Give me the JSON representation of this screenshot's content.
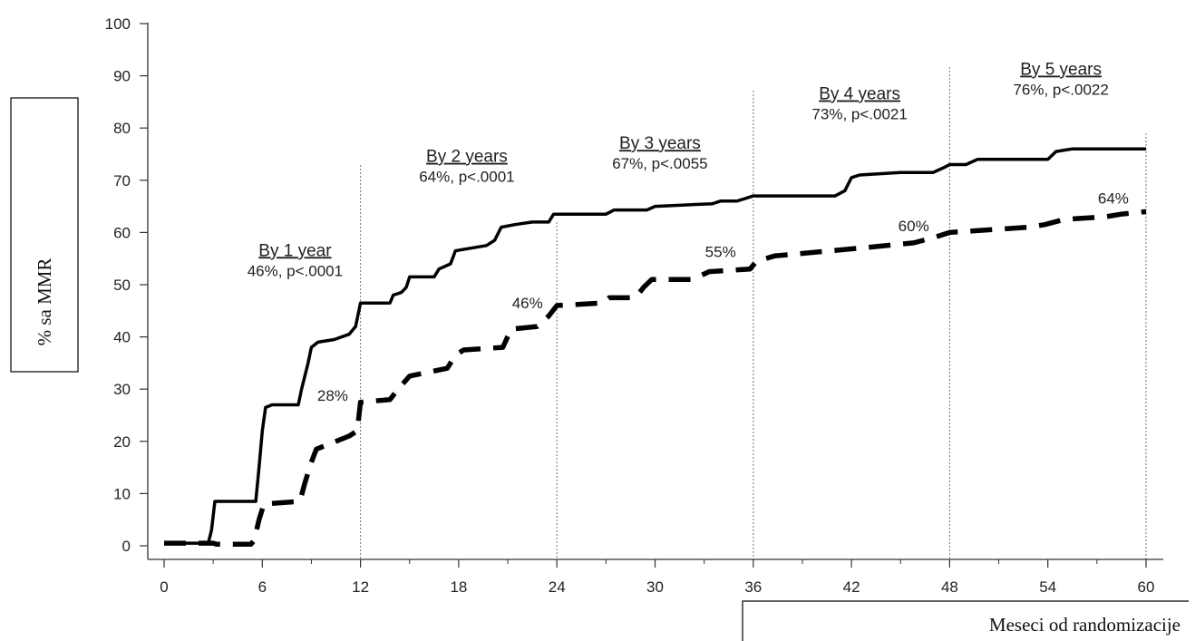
{
  "chart_data": {
    "type": "line",
    "xlabel": "Meseci od randomizacije",
    "ylabel": "% sa MMR",
    "xlim": [
      0,
      60
    ],
    "ylim": [
      0,
      100
    ],
    "x_ticks": [
      0,
      6,
      12,
      18,
      24,
      30,
      36,
      42,
      48,
      54,
      60
    ],
    "y_ticks": [
      0,
      10,
      20,
      30,
      40,
      50,
      60,
      70,
      80,
      90,
      100
    ],
    "milestones": [
      12,
      24,
      36,
      48,
      60
    ],
    "legend": "none",
    "grid": false,
    "series": [
      {
        "style": "solid",
        "color": "#000000",
        "points": [
          [
            0,
            0.5
          ],
          [
            2.7,
            0.5
          ],
          [
            2.9,
            3
          ],
          [
            3.1,
            8.5
          ],
          [
            5.6,
            8.5
          ],
          [
            5.8,
            15
          ],
          [
            6.0,
            22
          ],
          [
            6.2,
            26.5
          ],
          [
            6.6,
            27
          ],
          [
            8.2,
            27
          ],
          [
            8.4,
            30
          ],
          [
            8.8,
            35
          ],
          [
            9.0,
            38
          ],
          [
            9.4,
            39
          ],
          [
            10.4,
            39.5
          ],
          [
            11.3,
            40.5
          ],
          [
            11.7,
            42
          ],
          [
            12.0,
            46.5
          ],
          [
            13.8,
            46.5
          ],
          [
            14.0,
            48
          ],
          [
            14.5,
            48.5
          ],
          [
            14.8,
            49.5
          ],
          [
            15.0,
            51.5
          ],
          [
            16.5,
            51.5
          ],
          [
            16.8,
            53
          ],
          [
            17.5,
            54
          ],
          [
            17.8,
            56.5
          ],
          [
            19.7,
            57.5
          ],
          [
            20.2,
            58.5
          ],
          [
            20.6,
            61
          ],
          [
            21.4,
            61.5
          ],
          [
            22.5,
            62
          ],
          [
            23.5,
            62
          ],
          [
            23.8,
            63.5
          ],
          [
            27,
            63.5
          ],
          [
            27.5,
            64.3
          ],
          [
            29.5,
            64.3
          ],
          [
            30,
            65
          ],
          [
            33.5,
            65.5
          ],
          [
            34,
            66
          ],
          [
            35,
            66
          ],
          [
            35.5,
            66.5
          ],
          [
            36,
            67
          ],
          [
            41,
            67
          ],
          [
            41.6,
            68
          ],
          [
            42,
            70.5
          ],
          [
            42.5,
            71
          ],
          [
            45,
            71.5
          ],
          [
            47,
            71.5
          ],
          [
            47.7,
            72.5
          ],
          [
            48,
            73
          ],
          [
            49,
            73
          ],
          [
            49.7,
            74
          ],
          [
            54,
            74
          ],
          [
            54.5,
            75.5
          ],
          [
            55.5,
            76
          ],
          [
            60,
            76
          ]
        ]
      },
      {
        "style": "dashed",
        "color": "#000000",
        "points": [
          [
            0,
            0.5
          ],
          [
            3.0,
            0.5
          ],
          [
            3.2,
            0.3
          ],
          [
            5.3,
            0.3
          ],
          [
            5.5,
            1
          ],
          [
            5.8,
            5
          ],
          [
            6.1,
            8
          ],
          [
            8.3,
            8.5
          ],
          [
            8.6,
            12
          ],
          [
            9.0,
            16
          ],
          [
            9.3,
            18.5
          ],
          [
            11.3,
            21
          ],
          [
            11.8,
            22
          ],
          [
            12.0,
            27.5
          ],
          [
            13.8,
            28
          ],
          [
            14.3,
            30
          ],
          [
            15.0,
            32.5
          ],
          [
            17.3,
            34
          ],
          [
            17.8,
            36.5
          ],
          [
            18.3,
            37.5
          ],
          [
            20.7,
            38
          ],
          [
            21.2,
            41.5
          ],
          [
            22.8,
            42
          ],
          [
            23.5,
            44
          ],
          [
            24.0,
            46
          ],
          [
            26.8,
            46.5
          ],
          [
            27.2,
            47.5
          ],
          [
            28.8,
            47.5
          ],
          [
            29.3,
            49.5
          ],
          [
            29.8,
            51
          ],
          [
            32.3,
            51
          ],
          [
            33.3,
            52.5
          ],
          [
            35.8,
            53
          ],
          [
            36.2,
            54.5
          ],
          [
            37.3,
            55.5
          ],
          [
            42.5,
            57
          ],
          [
            45.8,
            58
          ],
          [
            47.0,
            59
          ],
          [
            48.0,
            60
          ],
          [
            52.8,
            61
          ],
          [
            53.8,
            61.5
          ],
          [
            55.0,
            62.5
          ],
          [
            57.5,
            63
          ],
          [
            58.5,
            63.5
          ],
          [
            60,
            64
          ]
        ]
      }
    ],
    "annotations": [
      {
        "title": "By 1 year",
        "text": "46%, p<.0001",
        "x": 8.0,
        "y": 55.5
      },
      {
        "title": "By 2 years",
        "text": "64%, p<.0001",
        "x": 18.5,
        "y": 73.5
      },
      {
        "title": "By 3 years",
        "text": "67%, p<.0055",
        "x": 30.3,
        "y": 76.0
      },
      {
        "title": "By 4 years",
        "text": "73%, p<.0021",
        "x": 42.5,
        "y": 85.5
      },
      {
        "title": "By 5 years",
        "text": "76%, p<.0022",
        "x": 54.8,
        "y": 90.2
      }
    ],
    "point_labels": [
      {
        "text": "28%",
        "x": 10.3,
        "y": 27.8
      },
      {
        "text": "46%",
        "x": 22.2,
        "y": 45.5
      },
      {
        "text": "55%",
        "x": 34.0,
        "y": 55.3
      },
      {
        "text": "60%",
        "x": 45.8,
        "y": 60.2
      },
      {
        "text": "64%",
        "x": 58.0,
        "y": 65.5
      }
    ]
  }
}
